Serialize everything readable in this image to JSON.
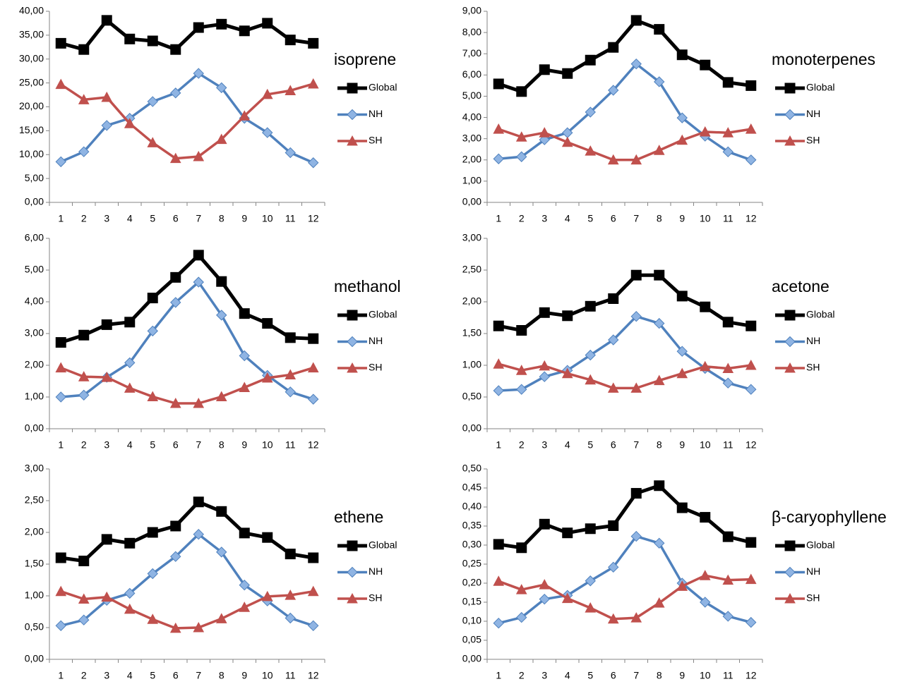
{
  "chart_data": [
    {
      "type": "line",
      "title": "isoprene",
      "categories": [
        "1",
        "2",
        "3",
        "4",
        "5",
        "6",
        "7",
        "8",
        "9",
        "10",
        "11",
        "12"
      ],
      "ylim": [
        0,
        40
      ],
      "yticks": [
        {
          "value": 0,
          "label": "0,00"
        },
        {
          "value": 5,
          "label": "5,00"
        },
        {
          "value": 10,
          "label": "10,00"
        },
        {
          "value": 15,
          "label": "15,00"
        },
        {
          "value": 20,
          "label": "20,00"
        },
        {
          "value": 25,
          "label": "25,00"
        },
        {
          "value": 30,
          "label": "30,00"
        },
        {
          "value": 35,
          "label": "35,00"
        },
        {
          "value": 40,
          "label": "40,00"
        }
      ],
      "grid": false,
      "series": [
        {
          "name": "Global",
          "color": "#000000",
          "marker": "square",
          "values": [
            33.3,
            32,
            38.1,
            34.2,
            33.8,
            32,
            36.6,
            37.3,
            35.9,
            37.5,
            34,
            33.3
          ]
        },
        {
          "name": "NH",
          "color": "#4f81bd",
          "marker": "diamond",
          "values": [
            8.5,
            10.6,
            16.1,
            17.6,
            21.1,
            22.9,
            27,
            24,
            17.6,
            14.6,
            10.4,
            8.3
          ]
        },
        {
          "name": "SH",
          "color": "#c0504d",
          "marker": "triangle",
          "values": [
            24.7,
            21.5,
            22,
            16.5,
            12.5,
            9.2,
            9.6,
            13.2,
            18.1,
            22.6,
            23.4,
            24.8
          ]
        }
      ]
    },
    {
      "type": "line",
      "title": "monoterpenes",
      "categories": [
        "1",
        "2",
        "3",
        "4",
        "5",
        "6",
        "7",
        "8",
        "9",
        "10",
        "11",
        "12"
      ],
      "ylim": [
        0,
        9
      ],
      "yticks": [
        {
          "value": 0,
          "label": "0,00"
        },
        {
          "value": 1,
          "label": "1,00"
        },
        {
          "value": 2,
          "label": "2,00"
        },
        {
          "value": 3,
          "label": "3,00"
        },
        {
          "value": 4,
          "label": "4,00"
        },
        {
          "value": 5,
          "label": "5,00"
        },
        {
          "value": 6,
          "label": "6,00"
        },
        {
          "value": 7,
          "label": "7,00"
        },
        {
          "value": 8,
          "label": "8,00"
        },
        {
          "value": 9,
          "label": "9,00"
        }
      ],
      "grid": false,
      "series": [
        {
          "name": "Global",
          "color": "#000000",
          "marker": "square",
          "values": [
            5.58,
            5.22,
            6.25,
            6.07,
            6.7,
            7.3,
            8.57,
            8.15,
            6.95,
            6.47,
            5.65,
            5.5
          ]
        },
        {
          "name": "NH",
          "color": "#4f81bd",
          "marker": "diamond",
          "values": [
            2.05,
            2.15,
            2.95,
            3.28,
            4.25,
            5.28,
            6.52,
            5.68,
            3.98,
            3.12,
            2.38,
            2.0
          ]
        },
        {
          "name": "SH",
          "color": "#c0504d",
          "marker": "triangle",
          "values": [
            3.45,
            3.08,
            3.28,
            2.83,
            2.42,
            2.0,
            2.0,
            2.45,
            2.93,
            3.32,
            3.28,
            3.45
          ]
        }
      ]
    },
    {
      "type": "line",
      "title": "methanol",
      "categories": [
        "1",
        "2",
        "3",
        "4",
        "5",
        "6",
        "7",
        "8",
        "9",
        "10",
        "11",
        "12"
      ],
      "ylim": [
        0,
        6
      ],
      "yticks": [
        {
          "value": 0,
          "label": "0,00"
        },
        {
          "value": 1,
          "label": "1,00"
        },
        {
          "value": 2,
          "label": "2,00"
        },
        {
          "value": 3,
          "label": "3,00"
        },
        {
          "value": 4,
          "label": "4,00"
        },
        {
          "value": 5,
          "label": "5,00"
        },
        {
          "value": 6,
          "label": "6,00"
        }
      ],
      "grid": false,
      "series": [
        {
          "name": "Global",
          "color": "#000000",
          "marker": "square",
          "values": [
            2.72,
            2.95,
            3.28,
            3.36,
            4.12,
            4.77,
            5.47,
            4.64,
            3.63,
            3.32,
            2.87,
            2.84
          ]
        },
        {
          "name": "NH",
          "color": "#4f81bd",
          "marker": "diamond",
          "values": [
            1.0,
            1.06,
            1.62,
            2.08,
            3.08,
            3.98,
            4.62,
            3.58,
            2.3,
            1.68,
            1.16,
            0.93
          ]
        },
        {
          "name": "SH",
          "color": "#c0504d",
          "marker": "triangle",
          "values": [
            1.92,
            1.64,
            1.62,
            1.28,
            1.01,
            0.8,
            0.8,
            1.01,
            1.3,
            1.6,
            1.7,
            1.92
          ]
        }
      ]
    },
    {
      "type": "line",
      "title": "acetone",
      "categories": [
        "1",
        "2",
        "3",
        "4",
        "5",
        "6",
        "7",
        "8",
        "9",
        "10",
        "11",
        "12"
      ],
      "ylim": [
        0,
        3
      ],
      "yticks": [
        {
          "value": 0,
          "label": "0,00"
        },
        {
          "value": 0.5,
          "label": "0,50"
        },
        {
          "value": 1,
          "label": "1,00"
        },
        {
          "value": 1.5,
          "label": "1,50"
        },
        {
          "value": 2,
          "label": "2,00"
        },
        {
          "value": 2.5,
          "label": "2,50"
        },
        {
          "value": 3,
          "label": "3,00"
        }
      ],
      "grid": false,
      "series": [
        {
          "name": "Global",
          "color": "#000000",
          "marker": "square",
          "values": [
            1.62,
            1.55,
            1.83,
            1.78,
            1.93,
            2.05,
            2.42,
            2.42,
            2.09,
            1.92,
            1.68,
            1.62
          ]
        },
        {
          "name": "NH",
          "color": "#4f81bd",
          "marker": "diamond",
          "values": [
            0.6,
            0.62,
            0.82,
            0.92,
            1.16,
            1.4,
            1.77,
            1.66,
            1.22,
            0.95,
            0.72,
            0.62
          ]
        },
        {
          "name": "SH",
          "color": "#c0504d",
          "marker": "triangle",
          "values": [
            1.02,
            0.92,
            0.99,
            0.87,
            0.77,
            0.64,
            0.64,
            0.76,
            0.87,
            0.98,
            0.95,
            1.0
          ]
        }
      ]
    },
    {
      "type": "line",
      "title": "ethene",
      "categories": [
        "1",
        "2",
        "3",
        "4",
        "5",
        "6",
        "7",
        "8",
        "9",
        "10",
        "11",
        "12"
      ],
      "ylim": [
        0,
        3
      ],
      "yticks": [
        {
          "value": 0,
          "label": "0,00"
        },
        {
          "value": 0.5,
          "label": "0,50"
        },
        {
          "value": 1,
          "label": "1,00"
        },
        {
          "value": 1.5,
          "label": "1,50"
        },
        {
          "value": 2,
          "label": "2,00"
        },
        {
          "value": 2.5,
          "label": "2,50"
        },
        {
          "value": 3,
          "label": "3,00"
        }
      ],
      "grid": false,
      "series": [
        {
          "name": "Global",
          "color": "#000000",
          "marker": "square",
          "values": [
            1.6,
            1.55,
            1.89,
            1.83,
            2.0,
            2.1,
            2.48,
            2.33,
            1.99,
            1.92,
            1.66,
            1.6
          ]
        },
        {
          "name": "NH",
          "color": "#4f81bd",
          "marker": "diamond",
          "values": [
            0.53,
            0.62,
            0.93,
            1.04,
            1.35,
            1.62,
            1.97,
            1.69,
            1.17,
            0.92,
            0.65,
            0.53
          ]
        },
        {
          "name": "SH",
          "color": "#c0504d",
          "marker": "triangle",
          "values": [
            1.07,
            0.95,
            0.98,
            0.79,
            0.63,
            0.49,
            0.5,
            0.64,
            0.82,
            0.99,
            1.01,
            1.07
          ]
        }
      ]
    },
    {
      "type": "line",
      "title": "β-caryophyllene",
      "categories": [
        "1",
        "2",
        "3",
        "4",
        "5",
        "6",
        "7",
        "8",
        "9",
        "10",
        "11",
        "12"
      ],
      "ylim": [
        0,
        0.5
      ],
      "yticks": [
        {
          "value": 0,
          "label": "0,00"
        },
        {
          "value": 0.05,
          "label": "0,05"
        },
        {
          "value": 0.1,
          "label": "0,10"
        },
        {
          "value": 0.15,
          "label": "0,15"
        },
        {
          "value": 0.2,
          "label": "0,20"
        },
        {
          "value": 0.25,
          "label": "0,25"
        },
        {
          "value": 0.3,
          "label": "0,30"
        },
        {
          "value": 0.35,
          "label": "0,35"
        },
        {
          "value": 0.4,
          "label": "0,40"
        },
        {
          "value": 0.45,
          "label": "0,45"
        },
        {
          "value": 0.5,
          "label": "0,50"
        }
      ],
      "grid": false,
      "series": [
        {
          "name": "Global",
          "color": "#000000",
          "marker": "square",
          "values": [
            0.302,
            0.293,
            0.355,
            0.332,
            0.343,
            0.351,
            0.436,
            0.456,
            0.398,
            0.373,
            0.322,
            0.307
          ]
        },
        {
          "name": "NH",
          "color": "#4f81bd",
          "marker": "diamond",
          "values": [
            0.095,
            0.11,
            0.158,
            0.168,
            0.206,
            0.242,
            0.323,
            0.305,
            0.2,
            0.15,
            0.113,
            0.097
          ]
        },
        {
          "name": "SH",
          "color": "#c0504d",
          "marker": "triangle",
          "values": [
            0.205,
            0.183,
            0.196,
            0.16,
            0.135,
            0.106,
            0.109,
            0.148,
            0.192,
            0.22,
            0.208,
            0.21
          ]
        }
      ]
    }
  ]
}
